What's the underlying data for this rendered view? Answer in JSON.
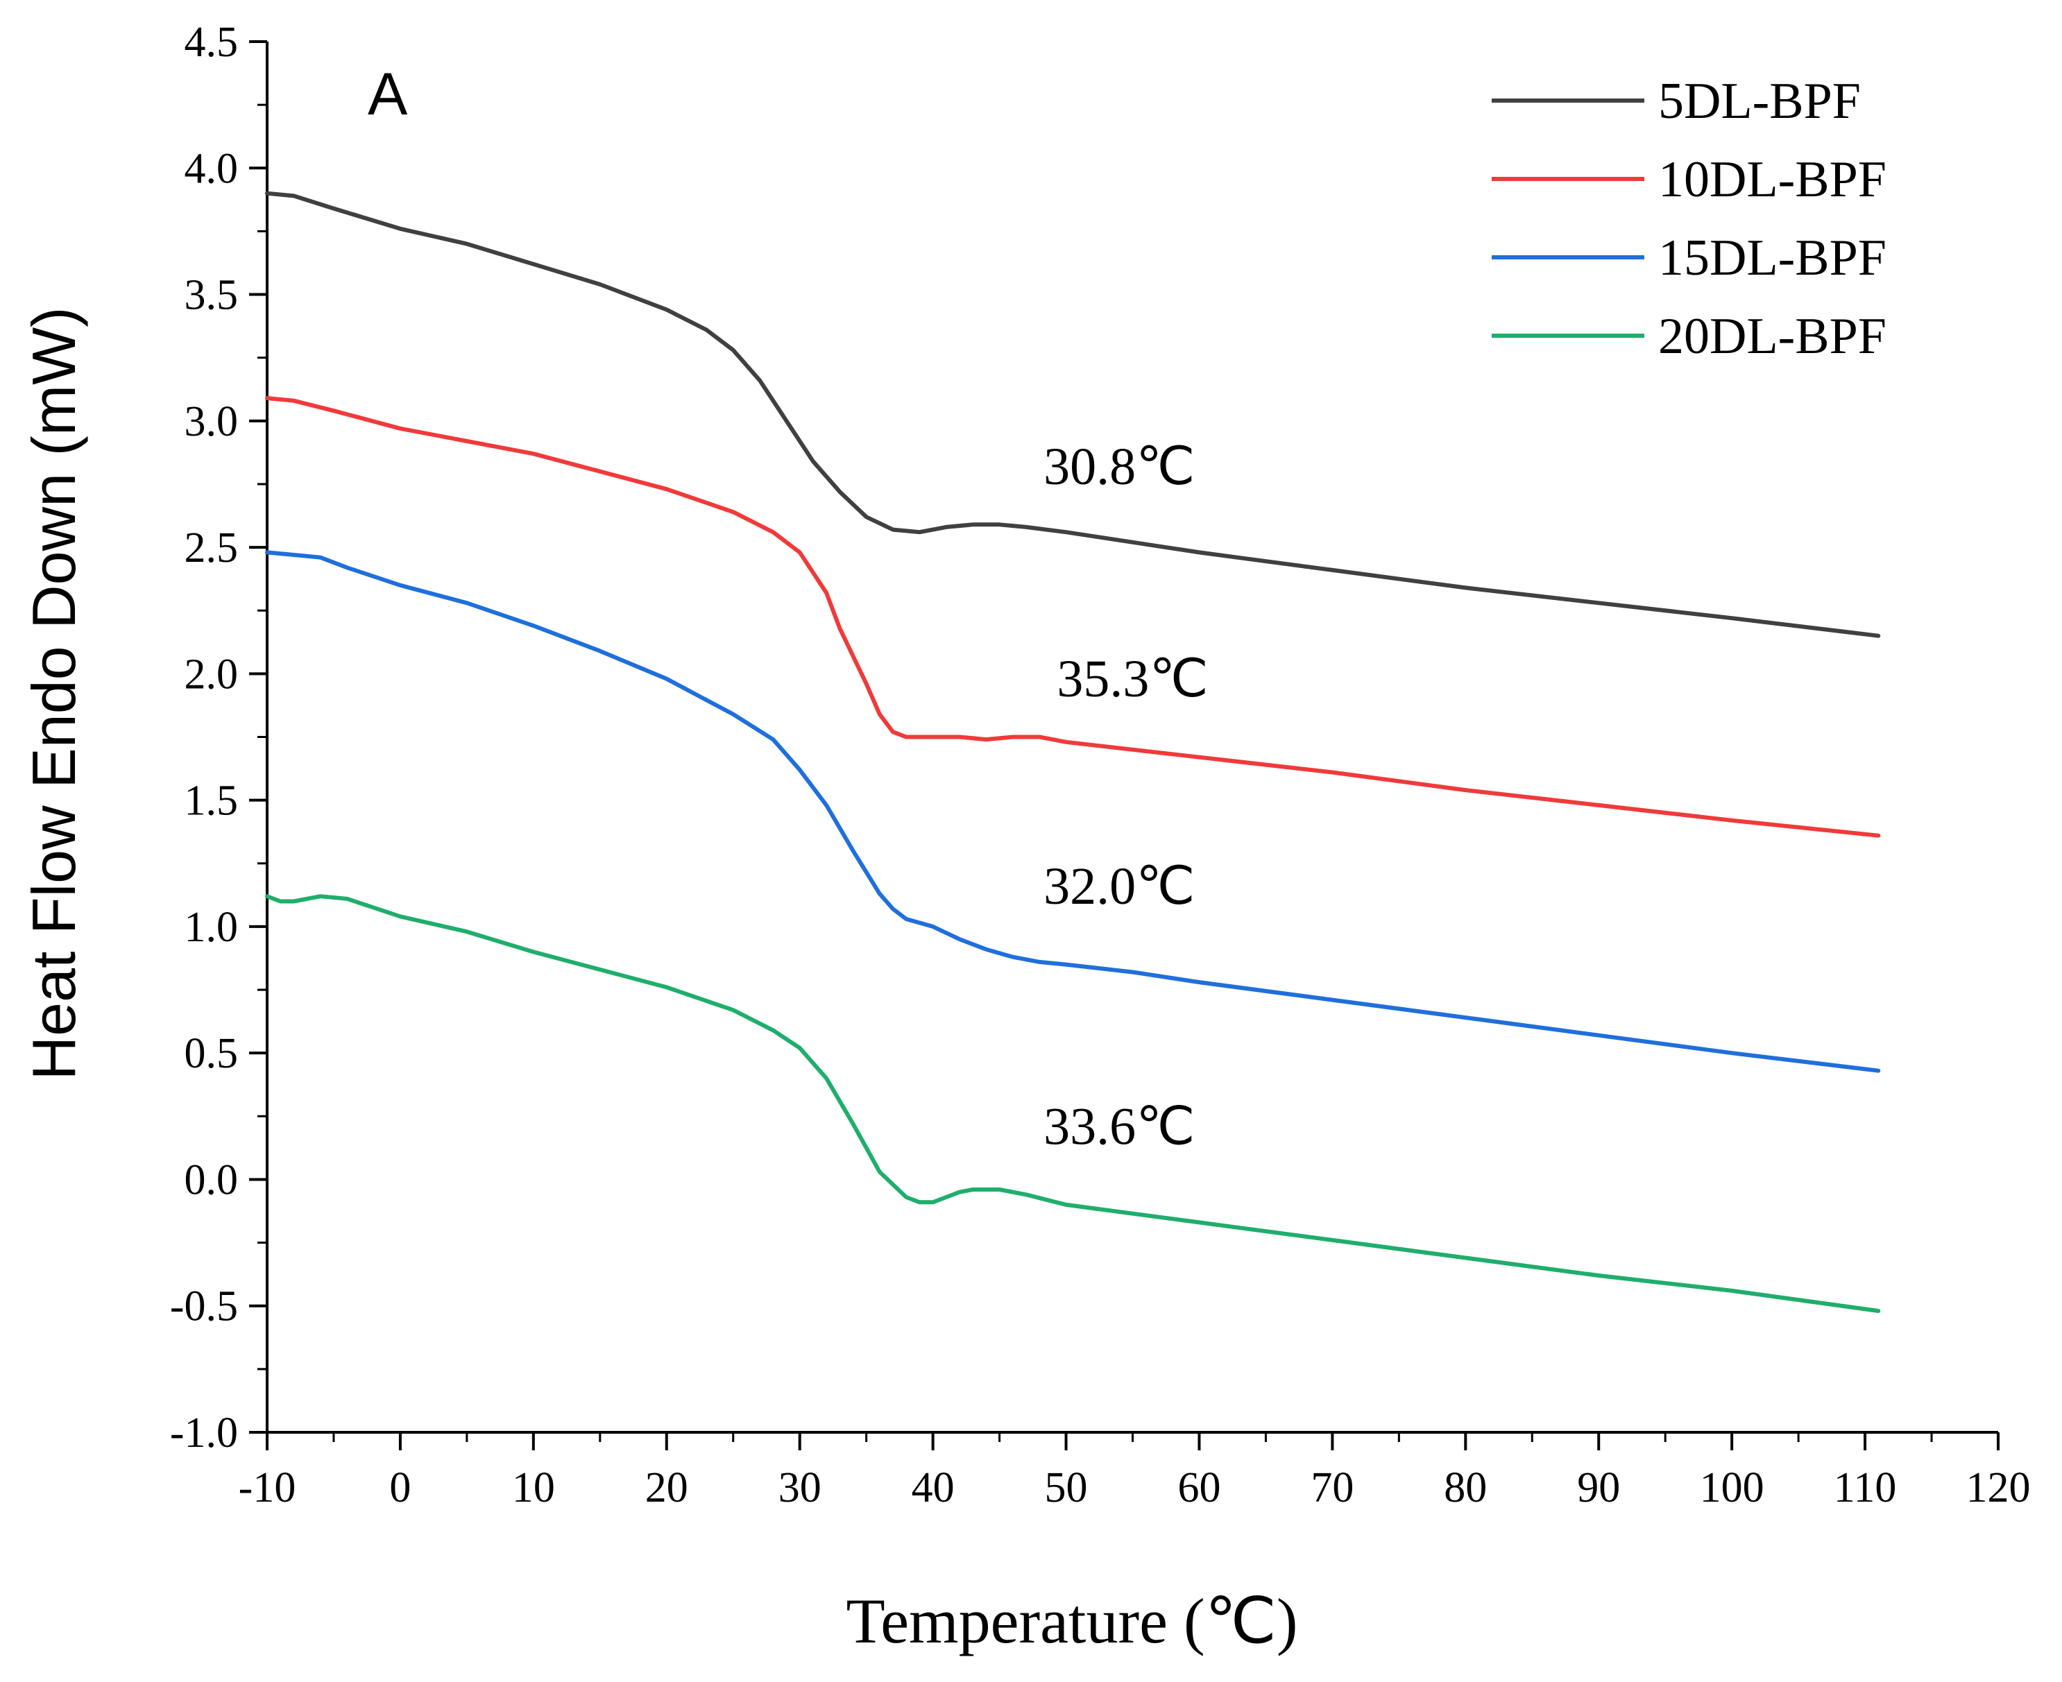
{
  "chart_data": {
    "type": "line",
    "panel_label": "A",
    "xlabel": "Temperature (℃)",
    "ylabel": "Heat Flow Endo Down (mW)",
    "xlim": [
      -10,
      120
    ],
    "ylim": [
      -1.0,
      4.5
    ],
    "x_ticks": [
      -10,
      0,
      10,
      20,
      30,
      40,
      50,
      60,
      70,
      80,
      90,
      100,
      110,
      120
    ],
    "y_ticks": [
      -1.0,
      -0.5,
      0.0,
      0.5,
      1.0,
      1.5,
      2.0,
      2.5,
      3.0,
      3.5,
      4.0,
      4.5
    ],
    "x_tick_labels": [
      "-10",
      "0",
      "10",
      "20",
      "30",
      "40",
      "50",
      "60",
      "70",
      "80",
      "90",
      "100",
      "110",
      "120"
    ],
    "y_tick_labels": [
      "-1.0",
      "-0.5",
      "0.0",
      "0.5",
      "1.0",
      "1.5",
      "2.0",
      "2.5",
      "3.0",
      "3.5",
      "4.0",
      "4.5"
    ],
    "grid": false,
    "legend_position": "top-right",
    "series": [
      {
        "name": "5DL-BPF",
        "color": "#404040",
        "points": [
          [
            -10,
            3.9
          ],
          [
            -8,
            3.89
          ],
          [
            -5,
            3.84
          ],
          [
            0,
            3.76
          ],
          [
            5,
            3.7
          ],
          [
            10,
            3.62
          ],
          [
            15,
            3.54
          ],
          [
            20,
            3.44
          ],
          [
            23,
            3.36
          ],
          [
            25,
            3.28
          ],
          [
            27,
            3.16
          ],
          [
            29,
            3.0
          ],
          [
            31,
            2.84
          ],
          [
            33,
            2.72
          ],
          [
            35,
            2.62
          ],
          [
            37,
            2.57
          ],
          [
            39,
            2.56
          ],
          [
            41,
            2.58
          ],
          [
            43,
            2.59
          ],
          [
            45,
            2.59
          ],
          [
            47,
            2.58
          ],
          [
            50,
            2.56
          ],
          [
            60,
            2.48
          ],
          [
            70,
            2.41
          ],
          [
            80,
            2.34
          ],
          [
            90,
            2.28
          ],
          [
            100,
            2.22
          ],
          [
            111,
            2.15
          ]
        ]
      },
      {
        "name": "10DL-BPF",
        "color": "#f03a3a",
        "points": [
          [
            -10,
            3.09
          ],
          [
            -8,
            3.08
          ],
          [
            -5,
            3.04
          ],
          [
            0,
            2.97
          ],
          [
            5,
            2.92
          ],
          [
            10,
            2.87
          ],
          [
            15,
            2.8
          ],
          [
            20,
            2.73
          ],
          [
            25,
            2.64
          ],
          [
            28,
            2.56
          ],
          [
            30,
            2.48
          ],
          [
            32,
            2.32
          ],
          [
            33,
            2.18
          ],
          [
            35,
            1.96
          ],
          [
            36,
            1.84
          ],
          [
            37,
            1.77
          ],
          [
            38,
            1.75
          ],
          [
            40,
            1.75
          ],
          [
            42,
            1.75
          ],
          [
            44,
            1.74
          ],
          [
            46,
            1.75
          ],
          [
            48,
            1.75
          ],
          [
            50,
            1.73
          ],
          [
            60,
            1.67
          ],
          [
            70,
            1.61
          ],
          [
            80,
            1.54
          ],
          [
            90,
            1.48
          ],
          [
            100,
            1.42
          ],
          [
            111,
            1.36
          ]
        ]
      },
      {
        "name": "15DL-BPF",
        "color": "#1f6fdc",
        "points": [
          [
            -10,
            2.48
          ],
          [
            -8,
            2.47
          ],
          [
            -6,
            2.46
          ],
          [
            -4,
            2.42
          ],
          [
            0,
            2.35
          ],
          [
            5,
            2.28
          ],
          [
            10,
            2.19
          ],
          [
            15,
            2.09
          ],
          [
            20,
            1.98
          ],
          [
            25,
            1.84
          ],
          [
            28,
            1.74
          ],
          [
            30,
            1.62
          ],
          [
            32,
            1.48
          ],
          [
            34,
            1.3
          ],
          [
            36,
            1.13
          ],
          [
            37,
            1.07
          ],
          [
            38,
            1.03
          ],
          [
            40,
            1.0
          ],
          [
            42,
            0.95
          ],
          [
            44,
            0.91
          ],
          [
            46,
            0.88
          ],
          [
            48,
            0.86
          ],
          [
            50,
            0.85
          ],
          [
            55,
            0.82
          ],
          [
            60,
            0.78
          ],
          [
            70,
            0.71
          ],
          [
            80,
            0.64
          ],
          [
            90,
            0.57
          ],
          [
            100,
            0.5
          ],
          [
            111,
            0.43
          ]
        ]
      },
      {
        "name": "20DL-BPF",
        "color": "#1fae6b",
        "points": [
          [
            -10,
            1.12
          ],
          [
            -9,
            1.1
          ],
          [
            -8,
            1.1
          ],
          [
            -6,
            1.12
          ],
          [
            -4,
            1.11
          ],
          [
            0,
            1.04
          ],
          [
            5,
            0.98
          ],
          [
            10,
            0.9
          ],
          [
            15,
            0.83
          ],
          [
            20,
            0.76
          ],
          [
            25,
            0.67
          ],
          [
            28,
            0.59
          ],
          [
            30,
            0.52
          ],
          [
            32,
            0.4
          ],
          [
            34,
            0.22
          ],
          [
            36,
            0.03
          ],
          [
            38,
            -0.07
          ],
          [
            39,
            -0.09
          ],
          [
            40,
            -0.09
          ],
          [
            41,
            -0.07
          ],
          [
            42,
            -0.05
          ],
          [
            43,
            -0.04
          ],
          [
            45,
            -0.04
          ],
          [
            47,
            -0.06
          ],
          [
            50,
            -0.1
          ],
          [
            60,
            -0.17
          ],
          [
            70,
            -0.24
          ],
          [
            80,
            -0.31
          ],
          [
            90,
            -0.38
          ],
          [
            100,
            -0.44
          ],
          [
            111,
            -0.52
          ]
        ]
      }
    ],
    "annotations": [
      {
        "text": "30.8℃",
        "x": 54,
        "y": 2.75
      },
      {
        "text": "35.3℃",
        "x": 55,
        "y": 1.91
      },
      {
        "text": "32.0℃",
        "x": 54,
        "y": 1.09
      },
      {
        "text": "33.6℃",
        "x": 54,
        "y": 0.14
      }
    ]
  }
}
